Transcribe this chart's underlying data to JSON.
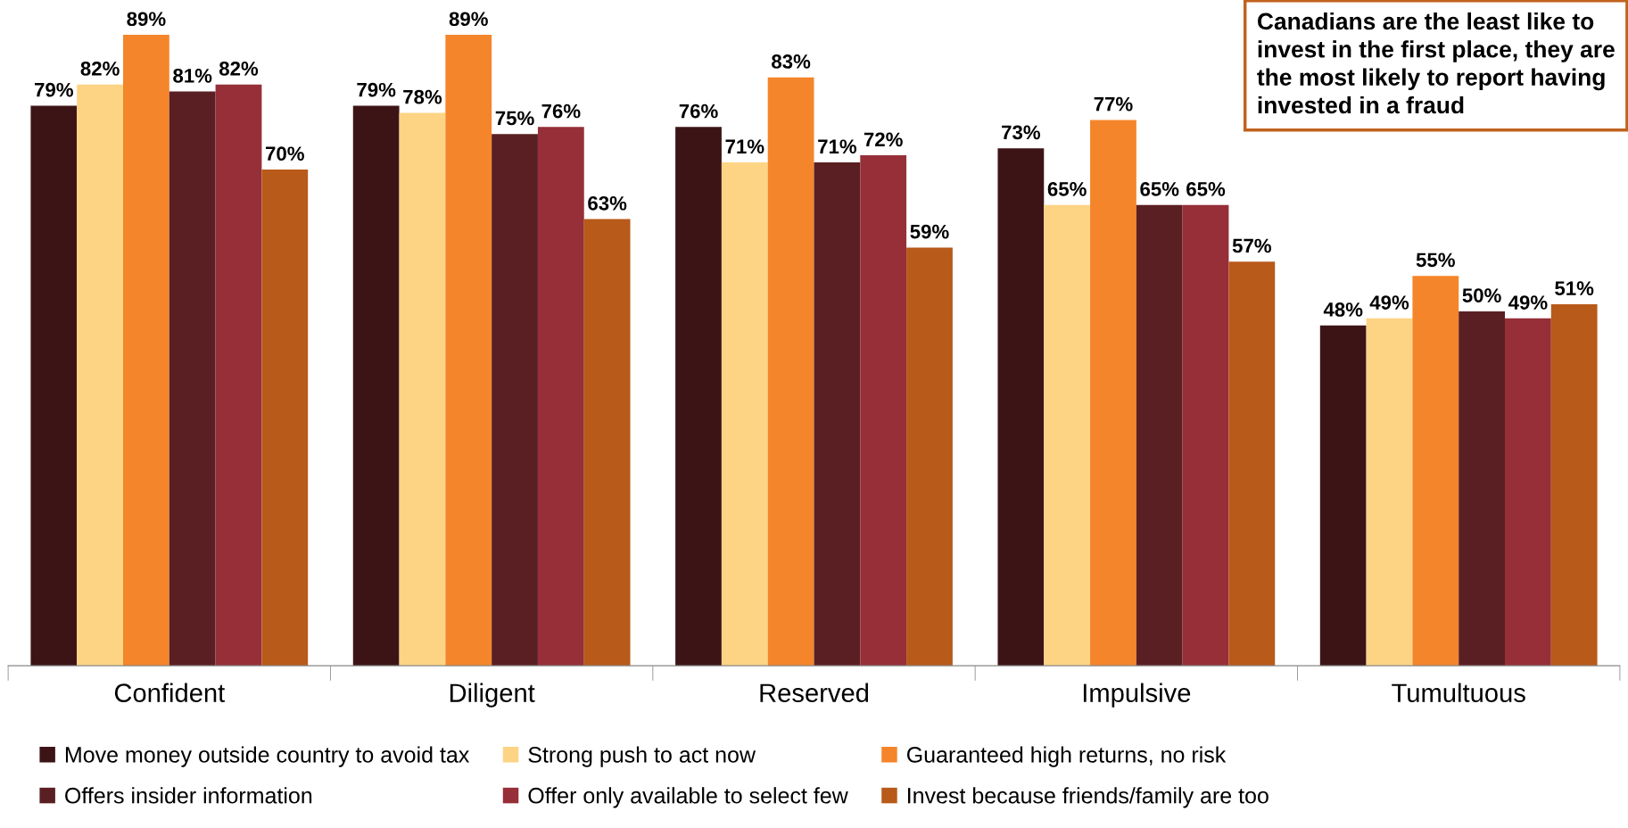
{
  "chart_data": {
    "type": "bar",
    "categories": [
      "Confident",
      "Diligent",
      "Reserved",
      "Impulsive",
      "Tumultuous"
    ],
    "series": [
      {
        "name": "Move money outside country to avoid tax",
        "color": "#3d1416",
        "values": [
          79,
          79,
          76,
          73,
          48
        ],
        "value_labels": [
          "79%",
          "79%",
          "76%",
          "73%",
          "48%"
        ]
      },
      {
        "name": "Strong push to act now",
        "color": "#fdd484",
        "values": [
          82,
          78,
          71,
          65,
          49
        ],
        "value_labels": [
          "82%",
          "78%",
          "71%",
          "65%",
          "49%"
        ]
      },
      {
        "name": "Guaranteed high returns, no risk",
        "color": "#f5852a",
        "values": [
          89,
          89,
          83,
          77,
          55
        ],
        "value_labels": [
          "89%",
          "89%",
          "83%",
          "77%",
          "55%"
        ]
      },
      {
        "name": "Offers insider information",
        "color": "#5a1f22",
        "values": [
          81,
          75,
          71,
          65,
          50
        ],
        "value_labels": [
          "81%",
          "75%",
          "71%",
          "65%",
          "50%"
        ]
      },
      {
        "name": "Offer only available to select few",
        "color": "#962f38",
        "values": [
          82,
          76,
          72,
          65,
          49
        ],
        "value_labels": [
          "82%",
          "76%",
          "72%",
          "65%",
          "49%"
        ]
      },
      {
        "name": "Invest because friends/family are too",
        "color": "#b85a1a",
        "values": [
          70,
          63,
          59,
          57,
          51
        ],
        "value_labels": [
          "70%",
          "63%",
          "59%",
          "57%",
          "51%"
        ]
      }
    ],
    "tick_labels": "x",
    "legend": "bottom",
    "annotations": [
      "Canadians are the least like to invest in the first place, they are the most likely to report having invested in a fraud"
    ]
  }
}
